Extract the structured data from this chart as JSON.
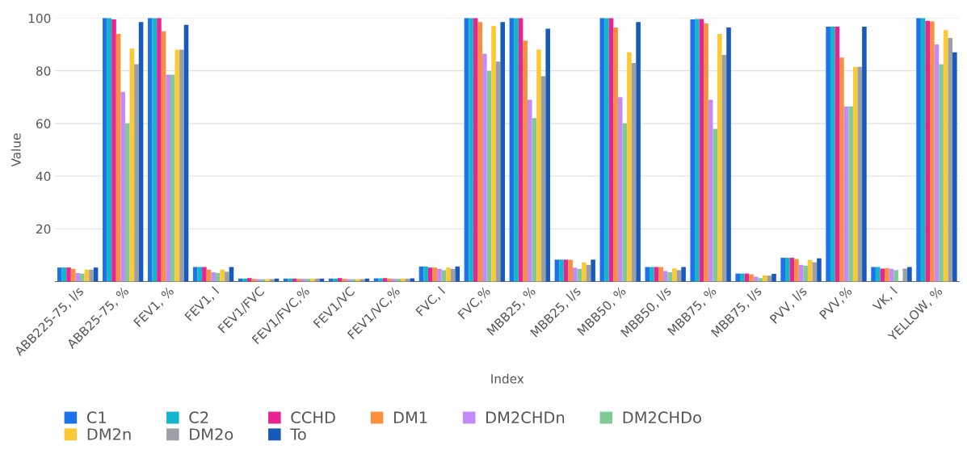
{
  "chart_data": {
    "type": "bar",
    "xlabel": "Index",
    "ylabel": "Value",
    "categories": [
      "ABB225-75, l/s",
      "ABB25-75, %",
      "FEV1, %",
      "FEV1, l",
      "FEV1/FVC",
      "FEV1/FVC,%",
      "FEV1/VC",
      "FEV1/VC,%",
      "FVC, l",
      "FVC,%",
      "MBB25, %",
      "MBB25, l/s",
      "MBB50, %",
      "MBB50, l/s",
      "MBB75, %",
      "MBB75, l/s",
      "PVV, l/s",
      "PVV,%",
      "VK, l",
      "YELLOW, %"
    ],
    "series": [
      {
        "name": "C1",
        "color": "#1a73e8",
        "values": [
          5.3,
          100,
          100,
          5.5,
          1.1,
          1.1,
          1.1,
          1.2,
          5.7,
          100,
          100,
          8.3,
          100,
          5.5,
          99.5,
          3,
          9,
          96.8,
          5.5,
          100
        ]
      },
      {
        "name": "C2",
        "color": "#12b5cb",
        "values": [
          5.3,
          100,
          100,
          5.5,
          1.1,
          1.1,
          1.1,
          1.2,
          5.7,
          100,
          100,
          8.3,
          100,
          5.5,
          99.7,
          3,
          9,
          96.8,
          5.5,
          100
        ]
      },
      {
        "name": "CCHD",
        "color": "#e52592",
        "values": [
          5.3,
          99.5,
          100,
          5.5,
          1.3,
          1.1,
          1.3,
          1.3,
          5.3,
          100,
          100,
          8.3,
          100,
          5.5,
          99.7,
          3,
          9,
          96.8,
          4.9,
          99
        ]
      },
      {
        "name": "DM1",
        "color": "#fa903e",
        "values": [
          4.8,
          94,
          95,
          4.5,
          1,
          1,
          1,
          1.1,
          5.3,
          98.5,
          91.5,
          8.2,
          96.5,
          5.5,
          98,
          2.7,
          8.5,
          85,
          5.1,
          98.8
        ]
      },
      {
        "name": "DM2CHDn",
        "color": "#c58af9",
        "values": [
          3.2,
          72,
          78.5,
          3.5,
          0.9,
          1,
          0.9,
          1,
          4.8,
          86.5,
          69,
          5.2,
          70,
          4,
          69,
          1.8,
          6.3,
          66.5,
          4.8,
          90
        ]
      },
      {
        "name": "DM2CHDo",
        "color": "#81c995",
        "values": [
          3,
          60,
          78.5,
          3.2,
          0.9,
          1,
          0.9,
          1,
          4.3,
          80,
          62,
          4.8,
          60,
          3.5,
          58,
          1.3,
          6,
          66.5,
          4.3,
          82.5
        ]
      },
      {
        "name": "DM2n",
        "color": "#fcc934",
        "values": [
          4.5,
          88.5,
          88,
          4.5,
          0.9,
          1,
          0.9,
          1.1,
          5.3,
          97,
          88,
          7.2,
          87,
          5,
          94,
          2.3,
          8.2,
          81.5,
          null,
          95.5
        ]
      },
      {
        "name": "DM2o",
        "color": "#9aa0a6",
        "values": [
          4.5,
          82.5,
          88,
          3.7,
          0.9,
          1.1,
          0.9,
          1.1,
          4.8,
          83.5,
          78,
          6.3,
          83,
          4.3,
          86,
          2.2,
          7.3,
          81.5,
          4.9,
          92.5
        ]
      },
      {
        "name": "To",
        "color": "#185abc",
        "values": [
          5.3,
          98.5,
          97.5,
          5.5,
          1.1,
          1.1,
          1.1,
          1.2,
          5.7,
          98.5,
          96,
          8.3,
          98.5,
          5.5,
          96.5,
          2.9,
          8.8,
          96.8,
          5.5,
          87
        ]
      }
    ],
    "ylim": [
      0,
      100
    ],
    "yticks": [
      20,
      40,
      60,
      80,
      100
    ],
    "grid": "y",
    "legend": "bottom left"
  }
}
